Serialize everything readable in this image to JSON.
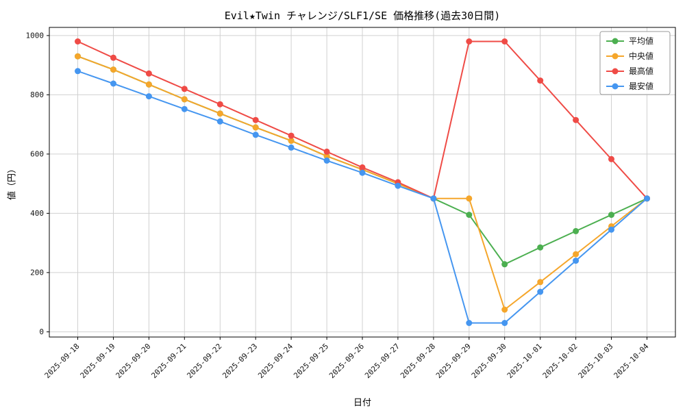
{
  "chart_data": {
    "type": "line",
    "title": "Evil★Twin チャレンジ/SLF1/SE 価格推移(過去30日間)",
    "xlabel": "日付",
    "ylabel": "値（円）",
    "x": [
      "2025-09-18",
      "2025-09-19",
      "2025-09-20",
      "2025-09-21",
      "2025-09-22",
      "2025-09-23",
      "2025-09-24",
      "2025-09-25",
      "2025-09-26",
      "2025-09-27",
      "2025-09-28",
      "2025-09-29",
      "2025-09-30",
      "2025-10-01",
      "2025-10-02",
      "2025-10-03",
      "2025-10-04"
    ],
    "yticks": [
      0,
      200,
      400,
      600,
      800,
      1000
    ],
    "ylim": [
      -17.5,
      1027.5
    ],
    "grid": true,
    "legend_position": "upper right",
    "series": [
      {
        "key": "average",
        "name": "平均値",
        "color": "#4caf50",
        "values": [
          930,
          885,
          835,
          785,
          737,
          690,
          645,
          593,
          548,
          500,
          450,
          395,
          228,
          285,
          340,
          395,
          450
        ]
      },
      {
        "key": "median",
        "name": "中央値",
        "color": "#f5a62b",
        "values": [
          930,
          885,
          835,
          785,
          737,
          690,
          645,
          593,
          548,
          500,
          450,
          450,
          75,
          168,
          262,
          356,
          450
        ]
      },
      {
        "key": "max",
        "name": "最高値",
        "color": "#ef4b46",
        "values": [
          980,
          925,
          872,
          820,
          768,
          715,
          662,
          608,
          555,
          505,
          450,
          980,
          980,
          848,
          715,
          583,
          450
        ]
      },
      {
        "key": "min",
        "name": "最安値",
        "color": "#4596f0",
        "values": [
          880,
          838,
          795,
          752,
          710,
          665,
          622,
          578,
          537,
          493,
          450,
          30,
          30,
          135,
          240,
          345,
          450
        ]
      }
    ]
  }
}
